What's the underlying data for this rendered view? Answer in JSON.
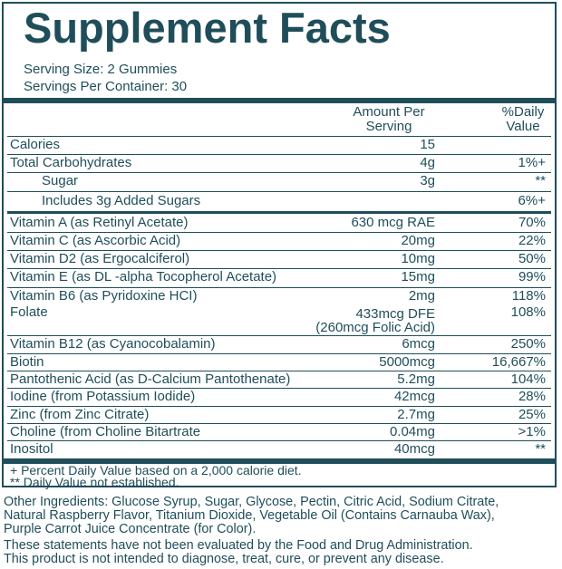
{
  "title": "Supplement Facts",
  "serving_size": "Serving Size: 2 Gummies",
  "servings_per_container": "Servings Per Container: 30",
  "header": {
    "amount_line1": "Amount Per",
    "amount_line2": "Serving",
    "dv_line1": "%Daily",
    "dv_line2": "Value"
  },
  "rows": [
    {
      "name": "Calories",
      "amount": "15",
      "dv": ""
    },
    {
      "name": "Total Carbohydrates",
      "amount": "4g",
      "dv": "1%+"
    },
    {
      "name": "Sugar",
      "amount": "3g",
      "dv": "**"
    },
    {
      "name": "Includes 3g Added Sugars",
      "amount": "",
      "dv": "6%+"
    },
    {
      "name": "Vitamin A (as Retinyl Acetate)",
      "amount": "630 mcg RAE",
      "dv": "70%"
    },
    {
      "name": "Vitamin C (as Ascorbic Acid)",
      "amount": "20mg",
      "dv": "22%"
    },
    {
      "name": "Vitamin D2 (as Ergocalciferol)",
      "amount": "10mg",
      "dv": "50%"
    },
    {
      "name": "Vitamin E (as DL -alpha Tocopherol Acetate)",
      "amount": "15mg",
      "dv": "99%"
    },
    {
      "name": "Vitamin B6 (as Pyridoxine HCI)",
      "amount": "2mg",
      "dv": "118%"
    },
    {
      "name": "Folate",
      "amount_line1": "433mcg DFE",
      "amount_line2": "(260mcg Folic Acid)",
      "dv": "108%"
    },
    {
      "name": "Vitamin B12 (as Cyanocobalamin)",
      "amount": "6mcg",
      "dv": "250%"
    },
    {
      "name": "Biotin",
      "amount": "5000mcg",
      "dv": "16,667%"
    },
    {
      "name": "Pantothenic Acid (as D-Calcium Pantothenate)",
      "amount": "5.2mg",
      "dv": "104%"
    },
    {
      "name": "Iodine (from Potassium Iodide)",
      "amount": "42mcg",
      "dv": "28%"
    },
    {
      "name": "Zinc (from Zinc Citrate)",
      "amount": "2.7mg",
      "dv": "25%"
    },
    {
      "name": "Choline (from Choline Bitartrate",
      "amount": "0.04mg",
      "dv": ">1%"
    },
    {
      "name": "Inositol",
      "amount": "40mcg",
      "dv": "**"
    }
  ],
  "footnotes": [
    "+ Percent Daily Value based on a 2,000 calorie diet.",
    "** Daily Value not established."
  ],
  "other_ingredients": [
    "Other Ingredients: Glucose Syrup, Sugar, Glycose, Pectin, Citric Acid, Sodium Citrate,",
    "Natural Raspberry Flavor, Titanium Dioxide, Vegetable Oil (Contains Carnauba Wax),",
    "Purple Carrot Juice Concentrate (for Color)."
  ],
  "disclaimer": [
    "These statements have not been evaluated by the Food and Drug Administration.",
    "This product is not intended to diagnose, treat, cure, or prevent any disease."
  ],
  "colors": {
    "ink": "#1f4e5a",
    "background": "#ffffff"
  }
}
